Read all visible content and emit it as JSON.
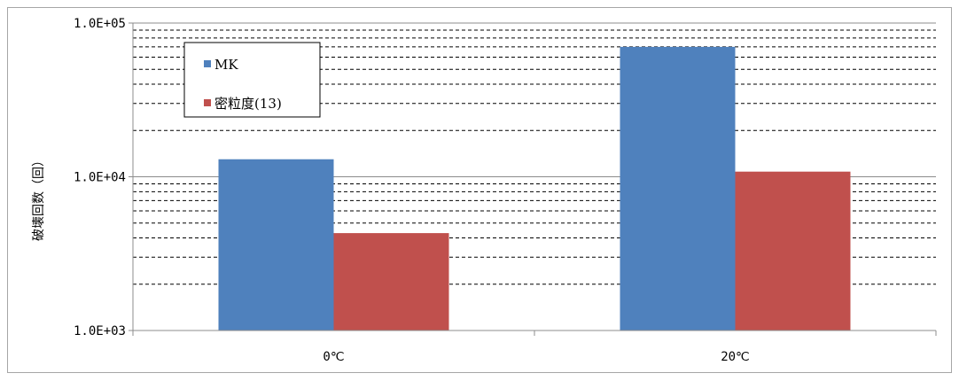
{
  "chart_data": {
    "type": "bar",
    "categories": [
      "0℃",
      "20℃"
    ],
    "series": [
      {
        "name": "MK",
        "color": "#4f81bd",
        "values": [
          13000,
          70000
        ]
      },
      {
        "name": "密粒度(13)",
        "color": "#c0504d",
        "values": [
          4300,
          10800
        ]
      }
    ],
    "ylabel": "破壊回数（回）",
    "y_scale": "log",
    "ylim": [
      1000,
      100000
    ],
    "y_tick_labels": [
      "1.0E+03",
      "1.0E+04",
      "1.0E+05"
    ],
    "grid": "dashed minor and major horizontal lines",
    "legend_position": "top-left"
  }
}
